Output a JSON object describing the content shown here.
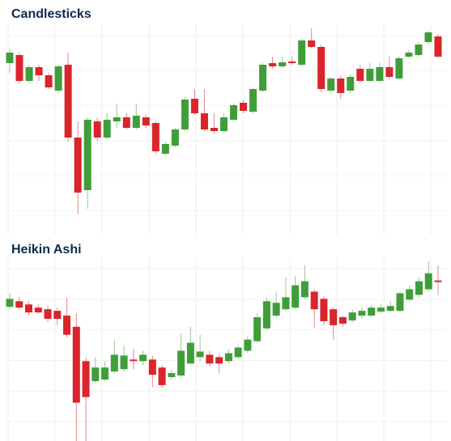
{
  "chart_data": [
    {
      "type": "candlestick",
      "title": "Candlesticks",
      "up_color": "#3f9e3a",
      "down_color": "#d9252b",
      "ylim": [
        10,
        270
      ],
      "open": [
        222,
        232,
        200,
        217,
        207,
        188,
        220,
        130,
        65,
        150,
        130,
        150,
        155,
        142,
        155,
        148,
        110,
        120,
        140,
        178,
        160,
        142,
        138,
        152,
        173,
        162,
        188,
        222,
        218,
        224,
        220,
        250,
        242,
        188,
        203,
        188,
        215,
        200,
        200,
        217,
        203,
        230,
        232,
        248,
        255
      ],
      "high": [
        240,
        235,
        220,
        220,
        210,
        220,
        235,
        150,
        155,
        155,
        160,
        172,
        160,
        172,
        158,
        150,
        125,
        142,
        180,
        190,
        190,
        160,
        160,
        172,
        176,
        192,
        222,
        230,
        230,
        230,
        252,
        265,
        245,
        205,
        206,
        208,
        220,
        222,
        222,
        230,
        230,
        238,
        248,
        262,
        258
      ],
      "low": [
        210,
        197,
        197,
        200,
        190,
        185,
        125,
        35,
        42,
        125,
        128,
        142,
        140,
        140,
        142,
        110,
        108,
        118,
        138,
        158,
        138,
        135,
        136,
        150,
        160,
        160,
        186,
        215,
        216,
        220,
        218,
        240,
        186,
        185,
        178,
        185,
        198,
        198,
        198,
        203,
        201,
        228,
        230,
        245,
        228
      ],
      "close": [
        235,
        200,
        217,
        207,
        192,
        218,
        130,
        62,
        152,
        130,
        152,
        155,
        142,
        157,
        145,
        113,
        122,
        140,
        177,
        160,
        140,
        138,
        155,
        170,
        163,
        190,
        220,
        218,
        223,
        222,
        250,
        242,
        190,
        203,
        185,
        205,
        200,
        215,
        217,
        205,
        228,
        235,
        245,
        260,
        230
      ]
    },
    {
      "type": "candlestick",
      "title": "Heikin Ashi",
      "up_color": "#3f9e3a",
      "down_color": "#d9252b",
      "ylim": [
        15,
        245
      ],
      "open": [
        183,
        190,
        186,
        182,
        180,
        178,
        172,
        158,
        115,
        90,
        92,
        102,
        105,
        117,
        115,
        117,
        107,
        95,
        97,
        112,
        120,
        123,
        120,
        115,
        120,
        128,
        140,
        156,
        172,
        180,
        182,
        195,
        202,
        193,
        180,
        170,
        166,
        172,
        172,
        177,
        178,
        178,
        192,
        198,
        205,
        216
      ],
      "high": [
        200,
        195,
        190,
        186,
        184,
        182,
        195,
        175,
        120,
        120,
        115,
        142,
        135,
        130,
        128,
        122,
        110,
        104,
        150,
        158,
        148,
        128,
        123,
        130,
        135,
        146,
        175,
        195,
        202,
        220,
        222,
        235,
        205,
        196,
        182,
        172,
        180,
        182,
        186,
        186,
        190,
        202,
        210,
        220,
        240,
        235
      ],
      "low": [
        180,
        180,
        172,
        174,
        164,
        160,
        145,
        15,
        15,
        88,
        90,
        100,
        102,
        105,
        110,
        82,
        82,
        92,
        95,
        110,
        115,
        108,
        100,
        112,
        118,
        125,
        138,
        154,
        170,
        178,
        180,
        193,
        156,
        160,
        142,
        158,
        163,
        168,
        170,
        175,
        176,
        176,
        190,
        195,
        202,
        198
      ],
      "close": [
        193,
        182,
        176,
        176,
        168,
        168,
        148,
        63,
        70,
        107,
        107,
        123,
        122,
        115,
        123,
        98,
        85,
        100,
        128,
        138,
        127,
        112,
        112,
        125,
        132,
        142,
        170,
        190,
        188,
        195,
        210,
        215,
        180,
        165,
        160,
        162,
        176,
        178,
        182,
        182,
        184,
        200,
        205,
        215,
        225,
        214
      ]
    }
  ]
}
